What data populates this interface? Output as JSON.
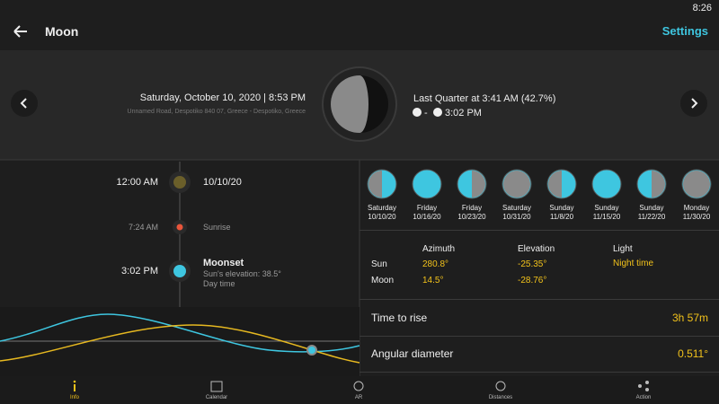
{
  "status_bar": {
    "time": "8:26"
  },
  "app_bar": {
    "title": "Moon",
    "action": "Settings"
  },
  "header": {
    "date": "Saturday, October 10, 2020 | 8:53 PM",
    "address": "Unnamed Road, Despotiko 840 07, Greece - Despotiko, Greece",
    "phase": "Last Quarter at 3:41 AM (42.7%)",
    "rise": "-",
    "set": "3:02 PM"
  },
  "timeline": [
    {
      "time": "12:00 AM",
      "title": "10/10/20"
    },
    {
      "time": "7:24 AM",
      "title": "Sunrise"
    },
    {
      "time": "3:02 PM",
      "title": "Moonset",
      "details": [
        "Sun's elevation: 38.5°",
        "Day time"
      ]
    }
  ],
  "phases": [
    {
      "day": "Saturday",
      "date": "10/10/20"
    },
    {
      "day": "Friday",
      "date": "10/16/20"
    },
    {
      "day": "Friday",
      "date": "10/23/20"
    },
    {
      "day": "Saturday",
      "date": "10/31/20"
    },
    {
      "day": "Sunday",
      "date": "11/8/20"
    },
    {
      "day": "Sunday",
      "date": "11/15/20"
    },
    {
      "day": "Sunday",
      "date": "11/22/20"
    },
    {
      "day": "Monday",
      "date": "11/30/20"
    }
  ],
  "position_table": {
    "headers": [
      "Azimuth",
      "Elevation",
      "Light"
    ],
    "rows": [
      {
        "label": "Sun",
        "values": [
          "280.8°",
          "-25.35°",
          "Night time"
        ]
      },
      {
        "label": "Moon",
        "values": [
          "14.5°",
          "-28.76°"
        ]
      }
    ]
  },
  "stats": [
    {
      "label": "Time to rise",
      "value": "3h 57m"
    },
    {
      "label": "Angular diameter",
      "value": "0.511°"
    }
  ],
  "nav": [
    {
      "label": "Info"
    },
    {
      "label": "Calendar"
    },
    {
      "label": "AR"
    },
    {
      "label": "Distances"
    },
    {
      "label": "Action"
    }
  ]
}
